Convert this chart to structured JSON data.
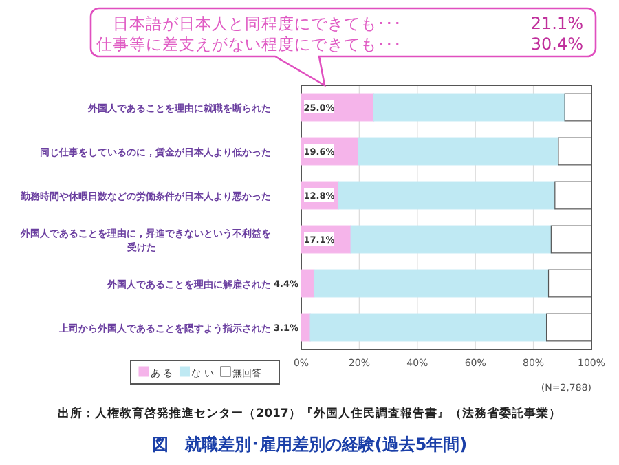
{
  "chart_data": {
    "type": "bar",
    "orientation": "horizontal",
    "stacked": true,
    "title": "図　就職差別･雇用差別の経験(過去5年間)",
    "categories": [
      "外国人であることを理由に就職を断られた",
      "同じ仕事をしているのに，賃金が日本人より低かった",
      "勤務時間や休暇日数などの労働条件が日本人より悪かった",
      "外国人であることを理由に，昇進できないという不利益を受けた",
      "外国人であることを理由に解雇された",
      "上司から外国人であることを隠すよう指示された"
    ],
    "series": [
      {
        "name": "あ る",
        "color": "#f5b4ea",
        "values": [
          25.0,
          19.6,
          12.8,
          17.1,
          4.4,
          3.1
        ],
        "value_labels": [
          "25.0%",
          "19.6%",
          "12.8%",
          "17.1%",
          "4.4%",
          "3.1%"
        ]
      },
      {
        "name": "な い",
        "color": "#bfe9f3",
        "values": [
          65.8,
          69.0,
          74.6,
          69.0,
          80.8,
          81.4
        ]
      },
      {
        "name": "無回答",
        "color": "#ffffff",
        "values": [
          9.2,
          11.4,
          12.6,
          13.9,
          14.8,
          15.5
        ]
      }
    ],
    "xlim": [
      0,
      100
    ],
    "xticks": [
      {
        "value": 0,
        "label": "0%"
      },
      {
        "value": 20,
        "label": "20%"
      },
      {
        "value": 40,
        "label": "40%"
      },
      {
        "value": 60,
        "label": "60%"
      },
      {
        "value": 80,
        "label": "80%"
      },
      {
        "value": 100,
        "label": "100%"
      }
    ],
    "grid": "x",
    "legend": "bottom",
    "annotations": [
      "日本語が日本人と同程度にできても･･･",
      "21.1%",
      "仕事等に差支えがない程度にできても･･･",
      "30.4%",
      "(N=2,788)",
      "出所：人権教育啓発推進センター（2017）『外国人住民調査報告書』（法務省委託事業）"
    ]
  }
}
